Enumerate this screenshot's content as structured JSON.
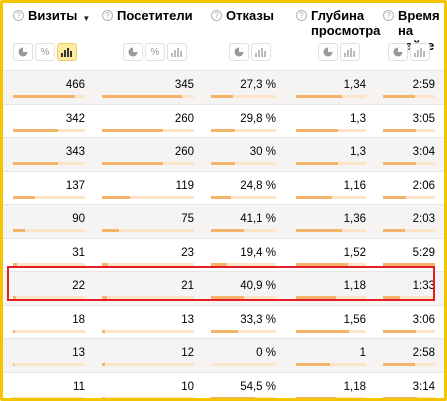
{
  "columns": [
    {
      "key": "visits",
      "title_lines": [
        "Визиты"
      ],
      "sort_indicator": "▼"
    },
    {
      "key": "visitors",
      "title_lines": [
        "Посетители"
      ]
    },
    {
      "key": "bounce",
      "title_lines": [
        "Отказы"
      ]
    },
    {
      "key": "depth",
      "title_lines": [
        "Глубина",
        "просмотра"
      ]
    },
    {
      "key": "time",
      "title_lines": [
        "Время",
        "на сайте"
      ]
    }
  ],
  "toggles": {
    "percent_symbol": "%",
    "visits_active": "bar-chart-icon",
    "visitors_active": "none"
  },
  "rows": [
    {
      "visits": "466",
      "visitors": "345",
      "bounce": "27,3 %",
      "depth": "1,34",
      "time": "2:59",
      "levels": {
        "visits": 0.86,
        "visitors": 0.87,
        "bounce": 0.34,
        "depth": 0.66,
        "time": 0.62
      }
    },
    {
      "visits": "342",
      "visitors": "260",
      "bounce": "29,8 %",
      "depth": "1,3",
      "time": "3:05",
      "levels": {
        "visits": 0.63,
        "visitors": 0.66,
        "bounce": 0.37,
        "depth": 0.6,
        "time": 0.64
      }
    },
    {
      "visits": "343",
      "visitors": "260",
      "bounce": "30 %",
      "depth": "1,3",
      "time": "3:04",
      "levels": {
        "visits": 0.63,
        "visitors": 0.66,
        "bounce": 0.37,
        "depth": 0.6,
        "time": 0.64
      }
    },
    {
      "visits": "137",
      "visitors": "119",
      "bounce": "24,8 %",
      "depth": "1,16",
      "time": "2:06",
      "levels": {
        "visits": 0.3,
        "visitors": 0.3,
        "bounce": 0.31,
        "depth": 0.52,
        "time": 0.44
      }
    },
    {
      "visits": "90",
      "visitors": "75",
      "bounce": "41,1 %",
      "depth": "1,36",
      "time": "2:03",
      "levels": {
        "visits": 0.17,
        "visitors": 0.19,
        "bounce": 0.51,
        "depth": 0.66,
        "time": 0.43
      }
    },
    {
      "visits": "31",
      "visitors": "23",
      "bounce": "19,4 %",
      "depth": "1,52",
      "time": "5:29",
      "levels": {
        "visits": 0.06,
        "visitors": 0.06,
        "bounce": 0.24,
        "depth": 0.74,
        "time": 1.0
      }
    },
    {
      "visits": "22",
      "visitors": "21",
      "bounce": "40,9 %",
      "depth": "1,18",
      "time": "1:33",
      "levels": {
        "visits": 0.04,
        "visitors": 0.05,
        "bounce": 0.51,
        "depth": 0.57,
        "time": 0.32
      }
    },
    {
      "visits": "18",
      "visitors": "13",
      "bounce": "33,3 %",
      "depth": "1,56",
      "time": "3:06",
      "levels": {
        "visits": 0.03,
        "visitors": 0.03,
        "bounce": 0.41,
        "depth": 0.76,
        "time": 0.64
      }
    },
    {
      "visits": "13",
      "visitors": "12",
      "bounce": "0 %",
      "depth": "1",
      "time": "2:58",
      "levels": {
        "visits": 0.02,
        "visitors": 0.03,
        "bounce": 0.0,
        "depth": 0.49,
        "time": 0.61
      }
    },
    {
      "visits": "11",
      "visitors": "10",
      "bounce": "54,5 %",
      "depth": "1,18",
      "time": "3:14",
      "levels": {
        "visits": 0.02,
        "visitors": 0.03,
        "bounce": 0.68,
        "depth": 0.57,
        "time": 0.66
      }
    }
  ],
  "highlighted_row_index": 6,
  "colors": {
    "accent_border": "#f5c400",
    "highlight": "#e31e24",
    "bar_fill": "#f6b46b",
    "bar_track": "#fbe4c7"
  }
}
